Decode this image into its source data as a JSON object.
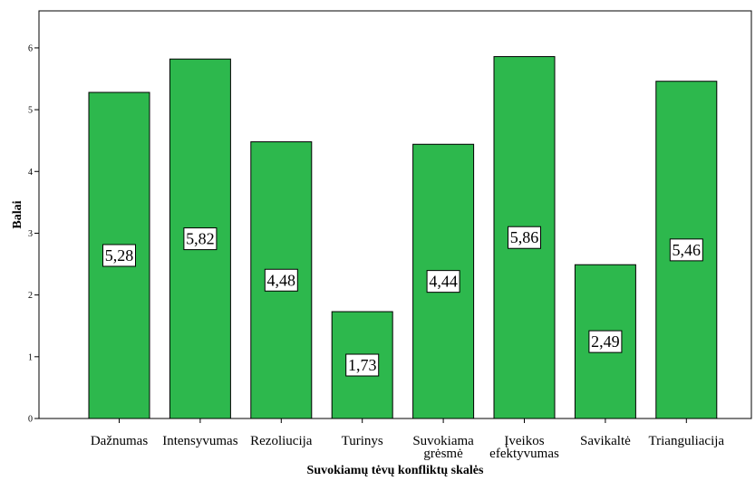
{
  "chart_data": {
    "type": "bar",
    "title": "",
    "xlabel": "Suvokiamų tėvų konfliktų skalės",
    "ylabel": "Balai",
    "ylim": [
      0,
      6.6
    ],
    "yticks": [
      0,
      1,
      2,
      3,
      4,
      5,
      6
    ],
    "grid": false,
    "bar_color": "#2db84d",
    "categories": [
      [
        "Dažnumas"
      ],
      [
        "Intensyvumas"
      ],
      [
        "Rezoliucija"
      ],
      [
        "Turinys"
      ],
      [
        "Suvokiama",
        "grėsmė"
      ],
      [
        "Įveikos",
        "efektyvumas"
      ],
      [
        "Savikaltė"
      ],
      [
        "Trianguliacija"
      ]
    ],
    "values": [
      5.28,
      5.82,
      4.48,
      1.73,
      4.44,
      5.86,
      2.49,
      5.46
    ],
    "value_labels": [
      "5,28",
      "5,82",
      "4,48",
      "1,73",
      "4,44",
      "5,86",
      "2,49",
      "5,46"
    ]
  }
}
